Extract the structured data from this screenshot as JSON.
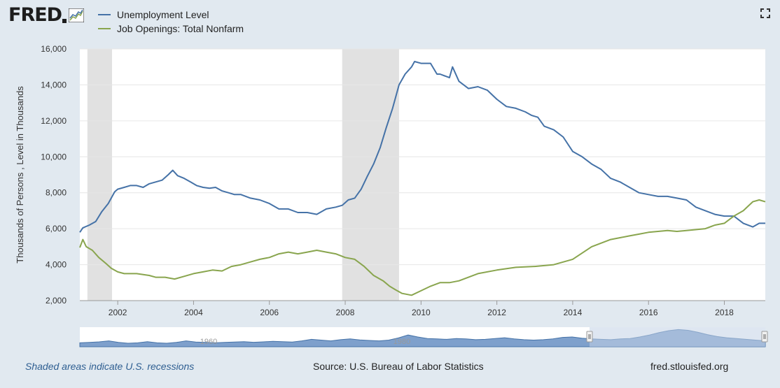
{
  "header": {
    "logo_text": "FRED",
    "fullscreen_icon": "expand-icon"
  },
  "colors": {
    "background": "#e1e9f0",
    "plot_background": "#ffffff",
    "unemployment": "#4572a7",
    "job_openings": "#89a54e",
    "recession": "#e1e1e1",
    "navigator_fill": "#7ea0cc",
    "navigator_mask": "#c2d1e6"
  },
  "footer": {
    "note": "Shaded areas indicate U.S. recessions",
    "source": "Source: U.S. Bureau of Labor Statistics",
    "url": "fred.stlouisfed.org"
  },
  "chart_data": {
    "type": "line",
    "title": "",
    "ylabel": "Thousands of Persons , Level in Thousands",
    "xlabel": "",
    "xlim": [
      2001.0,
      2019.08
    ],
    "ylim": [
      2000,
      16000
    ],
    "x_ticks": [
      "2002",
      "2004",
      "2006",
      "2008",
      "2010",
      "2012",
      "2014",
      "2016",
      "2018"
    ],
    "y_ticks": [
      "2,000",
      "4,000",
      "6,000",
      "8,000",
      "10,000",
      "12,000",
      "14,000",
      "16,000"
    ],
    "grid": true,
    "legend_position": "top-left",
    "recessions": [
      [
        2001.2,
        2001.85
      ],
      [
        2007.92,
        2009.42
      ]
    ],
    "series": [
      {
        "name": "Unemployment Level",
        "color": "#4572a7",
        "x": [
          2001.0,
          2001.08,
          2001.25,
          2001.42,
          2001.58,
          2001.75,
          2001.92,
          2002.0,
          2002.17,
          2002.33,
          2002.5,
          2002.67,
          2002.83,
          2003.0,
          2003.17,
          2003.33,
          2003.45,
          2003.58,
          2003.75,
          2003.92,
          2004.08,
          2004.25,
          2004.42,
          2004.58,
          2004.75,
          2004.92,
          2005.08,
          2005.25,
          2005.5,
          2005.75,
          2006.0,
          2006.25,
          2006.5,
          2006.75,
          2007.0,
          2007.25,
          2007.5,
          2007.75,
          2007.92,
          2008.08,
          2008.25,
          2008.42,
          2008.58,
          2008.75,
          2008.92,
          2009.08,
          2009.25,
          2009.42,
          2009.58,
          2009.75,
          2009.83,
          2010.0,
          2010.25,
          2010.42,
          2010.5,
          2010.75,
          2010.83,
          2011.0,
          2011.25,
          2011.5,
          2011.75,
          2012.0,
          2012.25,
          2012.5,
          2012.75,
          2012.92,
          2013.08,
          2013.25,
          2013.5,
          2013.75,
          2014.0,
          2014.25,
          2014.5,
          2014.75,
          2015.0,
          2015.25,
          2015.5,
          2015.75,
          2016.0,
          2016.25,
          2016.5,
          2016.75,
          2017.0,
          2017.25,
          2017.5,
          2017.75,
          2018.0,
          2018.25,
          2018.5,
          2018.75,
          2018.92,
          2019.08
        ],
        "values": [
          5800,
          6050,
          6200,
          6400,
          6950,
          7400,
          8050,
          8200,
          8300,
          8400,
          8400,
          8300,
          8500,
          8600,
          8700,
          9000,
          9250,
          8950,
          8800,
          8600,
          8400,
          8300,
          8250,
          8300,
          8100,
          8000,
          7900,
          7900,
          7700,
          7600,
          7400,
          7100,
          7100,
          6900,
          6900,
          6800,
          7100,
          7200,
          7300,
          7600,
          7700,
          8200,
          8900,
          9600,
          10500,
          11600,
          12700,
          14000,
          14600,
          15000,
          15300,
          15200,
          15200,
          14600,
          14600,
          14400,
          15000,
          14200,
          13800,
          13900,
          13700,
          13200,
          12800,
          12700,
          12500,
          12300,
          12200,
          11700,
          11500,
          11100,
          10300,
          10000,
          9600,
          9300,
          8800,
          8600,
          8300,
          8000,
          7900,
          7800,
          7800,
          7700,
          7600,
          7200,
          7000,
          6800,
          6700,
          6700,
          6300,
          6100,
          6300,
          6300
        ]
      },
      {
        "name": "Job Openings: Total Nonfarm",
        "color": "#89a54e",
        "x": [
          2001.0,
          2001.08,
          2001.17,
          2001.33,
          2001.5,
          2001.67,
          2001.83,
          2002.0,
          2002.17,
          2002.5,
          2002.83,
          2003.0,
          2003.25,
          2003.5,
          2003.75,
          2004.0,
          2004.25,
          2004.5,
          2004.75,
          2005.0,
          2005.25,
          2005.5,
          2005.75,
          2006.0,
          2006.25,
          2006.5,
          2006.75,
          2007.0,
          2007.25,
          2007.5,
          2007.75,
          2008.0,
          2008.25,
          2008.5,
          2008.75,
          2009.0,
          2009.17,
          2009.33,
          2009.5,
          2009.75,
          2010.0,
          2010.25,
          2010.5,
          2010.75,
          2011.0,
          2011.5,
          2012.0,
          2012.5,
          2013.0,
          2013.5,
          2014.0,
          2014.5,
          2015.0,
          2015.25,
          2015.5,
          2015.75,
          2016.0,
          2016.5,
          2016.75,
          2017.0,
          2017.5,
          2017.75,
          2018.0,
          2018.25,
          2018.5,
          2018.75,
          2018.92,
          2019.08
        ],
        "values": [
          4950,
          5400,
          5000,
          4800,
          4400,
          4100,
          3800,
          3600,
          3500,
          3500,
          3400,
          3300,
          3300,
          3200,
          3350,
          3500,
          3600,
          3700,
          3650,
          3900,
          4000,
          4150,
          4300,
          4400,
          4600,
          4700,
          4600,
          4700,
          4800,
          4700,
          4600,
          4400,
          4300,
          3900,
          3400,
          3100,
          2800,
          2600,
          2400,
          2300,
          2550,
          2800,
          3000,
          3000,
          3100,
          3500,
          3700,
          3850,
          3900,
          4000,
          4300,
          5000,
          5400,
          5500,
          5600,
          5700,
          5800,
          5900,
          5850,
          5900,
          6000,
          6200,
          6300,
          6700,
          7000,
          7500,
          7600,
          7500
        ]
      }
    ]
  },
  "navigator": {
    "labels": [
      "1960",
      "1980"
    ]
  }
}
